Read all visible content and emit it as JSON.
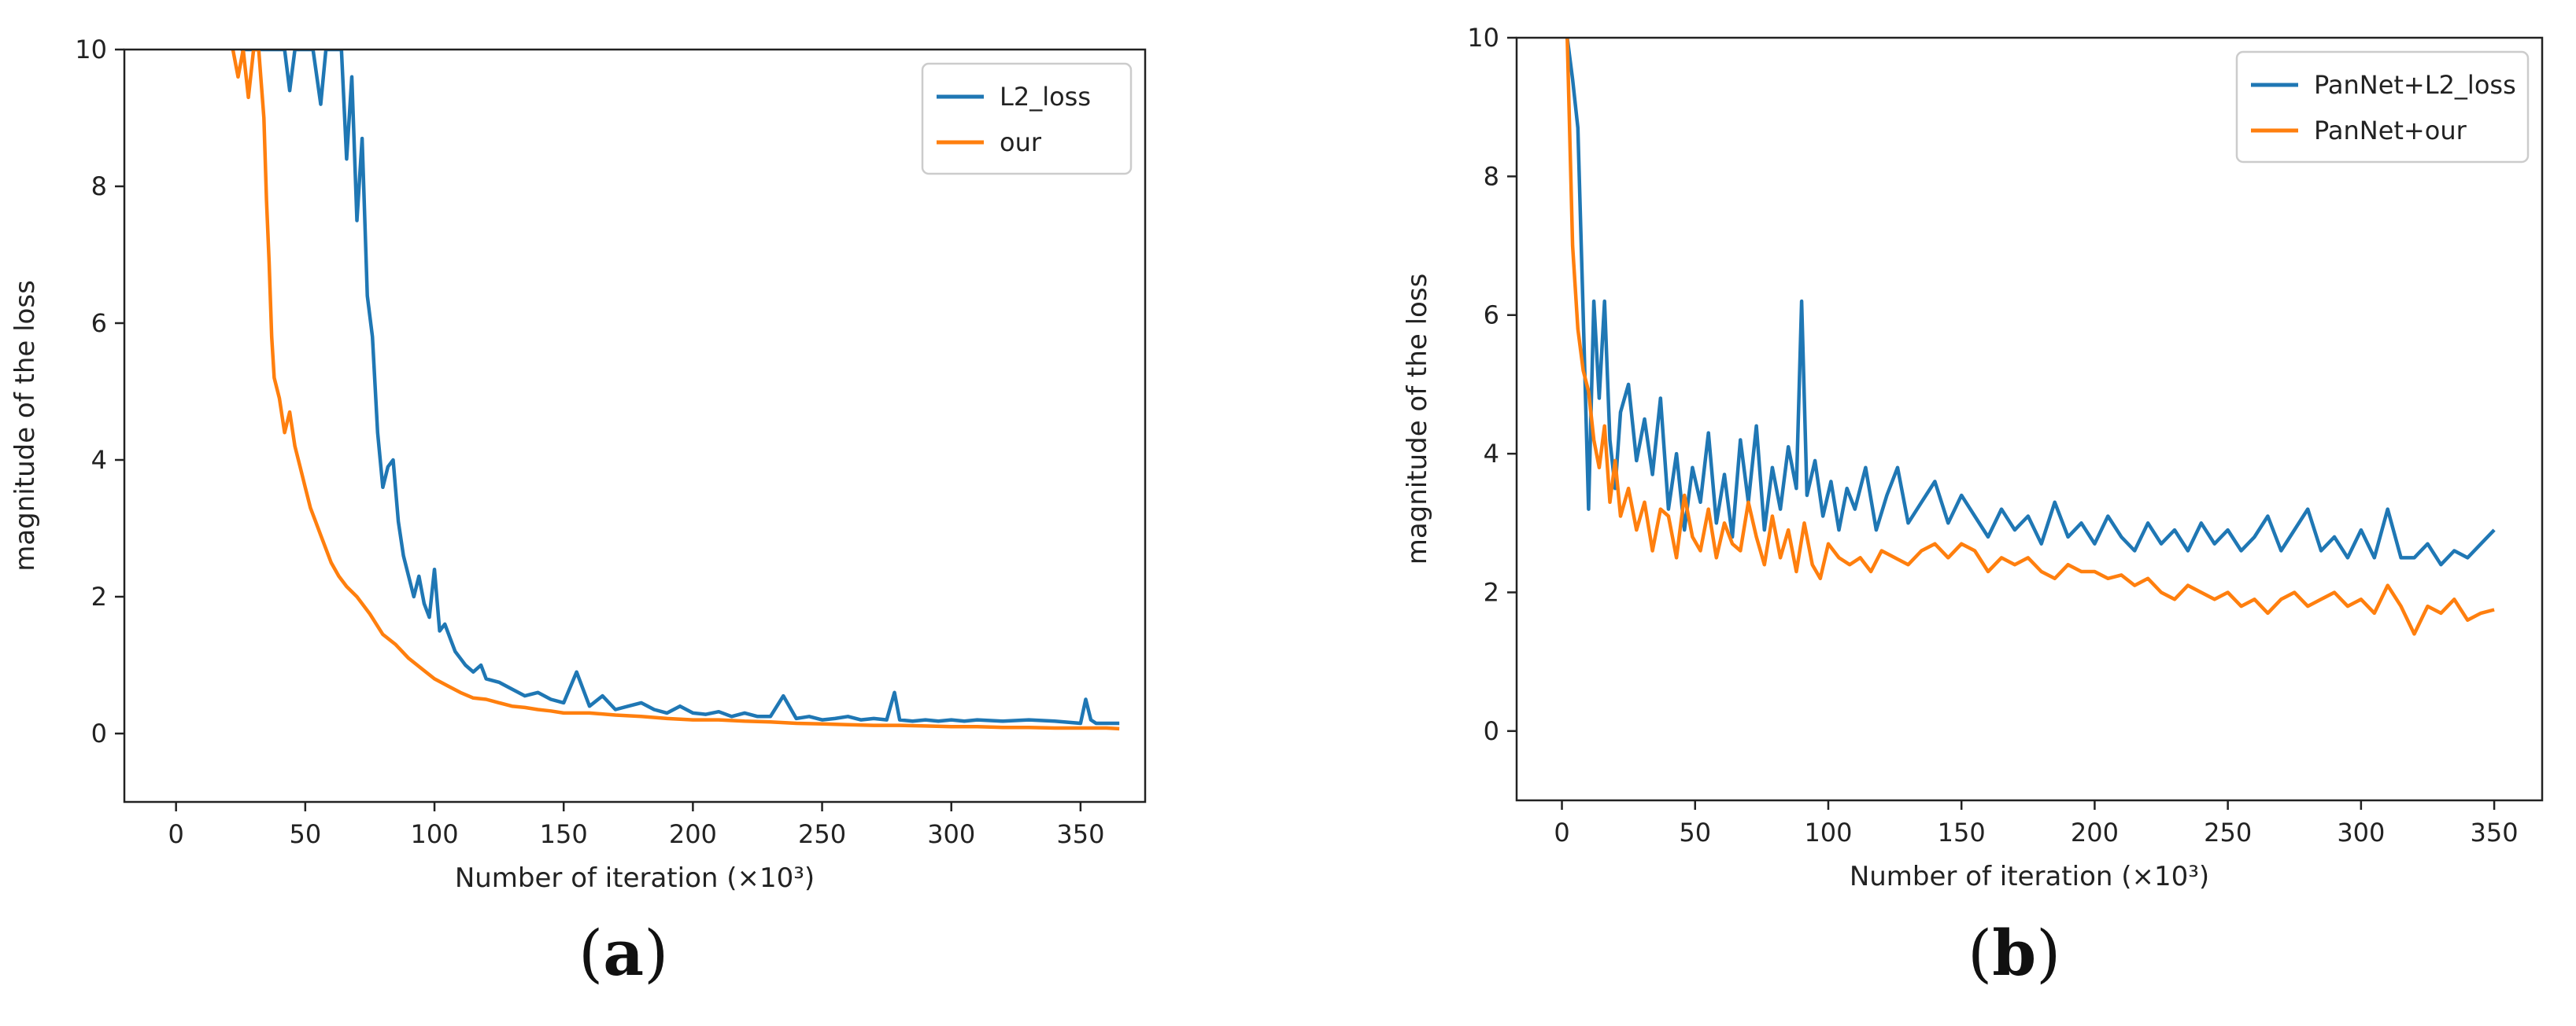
{
  "chart_data": [
    {
      "type": "line",
      "panel_label": "a",
      "title": "",
      "xlabel": "Number of iteration (×10³)",
      "ylabel": "magnitude of the loss",
      "xlim": [
        -20,
        375
      ],
      "ylim": [
        -1,
        10
      ],
      "xticks": [
        0,
        50,
        100,
        150,
        200,
        250,
        300,
        350
      ],
      "yticks": [
        0,
        2,
        4,
        6,
        8,
        10
      ],
      "legend_position": "top-right",
      "series": [
        {
          "name": "L2_loss",
          "color": "#1f77b4",
          "x": [
            25,
            30,
            35,
            40,
            42,
            44,
            46,
            48,
            50,
            53,
            56,
            58,
            60,
            62,
            64,
            66,
            68,
            70,
            72,
            74,
            76,
            78,
            80,
            82,
            84,
            86,
            88,
            90,
            92,
            94,
            96,
            98,
            100,
            102,
            104,
            106,
            108,
            110,
            112,
            115,
            118,
            120,
            125,
            130,
            135,
            140,
            145,
            150,
            155,
            160,
            165,
            170,
            175,
            180,
            185,
            190,
            195,
            200,
            205,
            210,
            215,
            220,
            225,
            230,
            235,
            240,
            245,
            250,
            255,
            260,
            265,
            270,
            275,
            278,
            280,
            285,
            290,
            295,
            300,
            305,
            310,
            320,
            330,
            340,
            350,
            352,
            354,
            356,
            360,
            365
          ],
          "y": [
            10,
            10,
            10,
            10,
            10,
            9.4,
            10,
            10,
            10,
            10,
            9.2,
            10,
            10,
            10,
            10,
            8.4,
            9.6,
            7.5,
            8.7,
            6.4,
            5.8,
            4.4,
            3.6,
            3.9,
            4.0,
            3.1,
            2.6,
            2.3,
            2.0,
            2.3,
            1.9,
            1.7,
            2.4,
            1.5,
            1.6,
            1.4,
            1.2,
            1.1,
            1.0,
            0.9,
            1.0,
            0.8,
            0.75,
            0.65,
            0.55,
            0.6,
            0.5,
            0.45,
            0.9,
            0.4,
            0.55,
            0.35,
            0.4,
            0.45,
            0.35,
            0.3,
            0.4,
            0.3,
            0.28,
            0.32,
            0.25,
            0.3,
            0.25,
            0.25,
            0.55,
            0.22,
            0.25,
            0.2,
            0.22,
            0.25,
            0.2,
            0.22,
            0.2,
            0.6,
            0.2,
            0.18,
            0.2,
            0.18,
            0.2,
            0.18,
            0.2,
            0.18,
            0.2,
            0.18,
            0.15,
            0.5,
            0.2,
            0.15,
            0.15,
            0.15
          ]
        },
        {
          "name": "our",
          "color": "#ff7f0e",
          "x": [
            22,
            24,
            26,
            28,
            30,
            32,
            34,
            35,
            36,
            37,
            38,
            40,
            42,
            44,
            46,
            48,
            50,
            52,
            54,
            56,
            58,
            60,
            63,
            66,
            70,
            75,
            80,
            85,
            90,
            95,
            100,
            105,
            110,
            115,
            120,
            125,
            130,
            135,
            140,
            145,
            150,
            160,
            170,
            180,
            190,
            200,
            210,
            220,
            230,
            240,
            250,
            260,
            270,
            280,
            290,
            300,
            310,
            320,
            330,
            340,
            350,
            360,
            365
          ],
          "y": [
            10,
            9.6,
            10,
            9.3,
            10,
            10,
            9.0,
            7.8,
            6.9,
            5.8,
            5.2,
            4.9,
            4.4,
            4.7,
            4.2,
            3.9,
            3.6,
            3.3,
            3.1,
            2.9,
            2.7,
            2.5,
            2.3,
            2.15,
            2.0,
            1.75,
            1.45,
            1.3,
            1.1,
            0.95,
            0.8,
            0.7,
            0.6,
            0.52,
            0.5,
            0.45,
            0.4,
            0.38,
            0.35,
            0.33,
            0.3,
            0.3,
            0.27,
            0.25,
            0.22,
            0.2,
            0.2,
            0.18,
            0.17,
            0.15,
            0.14,
            0.13,
            0.12,
            0.12,
            0.11,
            0.1,
            0.1,
            0.09,
            0.09,
            0.08,
            0.08,
            0.08,
            0.07
          ]
        }
      ]
    },
    {
      "type": "line",
      "panel_label": "b",
      "title": "",
      "xlabel": "Number of iteration (×10³)",
      "ylabel": "magnitude of the loss",
      "xlim": [
        -17,
        368
      ],
      "ylim": [
        -1,
        10
      ],
      "xticks": [
        0,
        50,
        100,
        150,
        200,
        250,
        300,
        350
      ],
      "yticks": [
        0,
        2,
        4,
        6,
        8,
        10
      ],
      "legend_position": "top-right",
      "series": [
        {
          "name": "PanNet+L2_loss",
          "color": "#1f77b4",
          "x": [
            2,
            4,
            6,
            8,
            10,
            12,
            14,
            16,
            18,
            20,
            22,
            25,
            28,
            31,
            34,
            37,
            40,
            43,
            46,
            49,
            52,
            55,
            58,
            61,
            64,
            67,
            70,
            73,
            76,
            79,
            82,
            85,
            88,
            90,
            92,
            95,
            98,
            101,
            104,
            107,
            110,
            114,
            118,
            122,
            126,
            130,
            135,
            140,
            145,
            150,
            155,
            160,
            165,
            170,
            175,
            180,
            185,
            190,
            195,
            200,
            205,
            210,
            215,
            220,
            225,
            230,
            235,
            240,
            245,
            250,
            255,
            260,
            265,
            270,
            275,
            280,
            285,
            290,
            295,
            300,
            305,
            310,
            315,
            320,
            325,
            330,
            335,
            340,
            345,
            350
          ],
          "y": [
            10,
            9.4,
            8.7,
            6.0,
            3.2,
            6.2,
            4.8,
            6.2,
            4.2,
            3.5,
            4.6,
            5.0,
            3.9,
            4.5,
            3.7,
            4.8,
            3.2,
            4.0,
            2.9,
            3.8,
            3.3,
            4.3,
            3.0,
            3.7,
            2.8,
            4.2,
            3.3,
            4.4,
            2.9,
            3.8,
            3.2,
            4.1,
            3.5,
            6.2,
            3.4,
            3.9,
            3.1,
            3.6,
            2.9,
            3.5,
            3.2,
            3.8,
            2.9,
            3.4,
            3.8,
            3.0,
            3.3,
            3.6,
            3.0,
            3.4,
            3.1,
            2.8,
            3.2,
            2.9,
            3.1,
            2.7,
            3.3,
            2.8,
            3.0,
            2.7,
            3.1,
            2.8,
            2.6,
            3.0,
            2.7,
            2.9,
            2.6,
            3.0,
            2.7,
            2.9,
            2.6,
            2.8,
            3.1,
            2.6,
            2.9,
            3.2,
            2.6,
            2.8,
            2.5,
            2.9,
            2.5,
            3.2,
            2.5,
            2.5,
            2.7,
            2.4,
            2.6,
            2.5,
            2.7,
            2.9
          ]
        },
        {
          "name": "PanNet+our",
          "color": "#ff7f0e",
          "x": [
            2,
            4,
            6,
            8,
            10,
            12,
            14,
            16,
            18,
            20,
            22,
            25,
            28,
            31,
            34,
            37,
            40,
            43,
            46,
            49,
            52,
            55,
            58,
            61,
            64,
            67,
            70,
            73,
            76,
            79,
            82,
            85,
            88,
            91,
            94,
            97,
            100,
            104,
            108,
            112,
            116,
            120,
            125,
            130,
            135,
            140,
            145,
            150,
            155,
            160,
            165,
            170,
            175,
            180,
            185,
            190,
            195,
            200,
            205,
            210,
            215,
            220,
            225,
            230,
            235,
            240,
            245,
            250,
            255,
            260,
            265,
            270,
            275,
            280,
            285,
            290,
            295,
            300,
            305,
            310,
            315,
            320,
            325,
            330,
            335,
            340,
            345,
            350
          ],
          "y": [
            10,
            7.0,
            5.8,
            5.2,
            4.9,
            4.2,
            3.8,
            4.4,
            3.3,
            3.9,
            3.1,
            3.5,
            2.9,
            3.3,
            2.6,
            3.2,
            3.1,
            2.5,
            3.4,
            2.8,
            2.6,
            3.2,
            2.5,
            3.0,
            2.7,
            2.6,
            3.3,
            2.8,
            2.4,
            3.1,
            2.5,
            2.9,
            2.3,
            3.0,
            2.4,
            2.2,
            2.7,
            2.5,
            2.4,
            2.5,
            2.3,
            2.6,
            2.5,
            2.4,
            2.6,
            2.7,
            2.5,
            2.7,
            2.6,
            2.3,
            2.5,
            2.4,
            2.5,
            2.3,
            2.2,
            2.4,
            2.3,
            2.3,
            2.2,
            2.25,
            2.1,
            2.2,
            2.0,
            1.9,
            2.1,
            2.0,
            1.9,
            2.0,
            1.8,
            1.9,
            1.7,
            1.9,
            2.0,
            1.8,
            1.9,
            2.0,
            1.8,
            1.9,
            1.7,
            2.1,
            1.8,
            1.4,
            1.8,
            1.7,
            1.9,
            1.6,
            1.7,
            1.75
          ]
        }
      ]
    }
  ]
}
